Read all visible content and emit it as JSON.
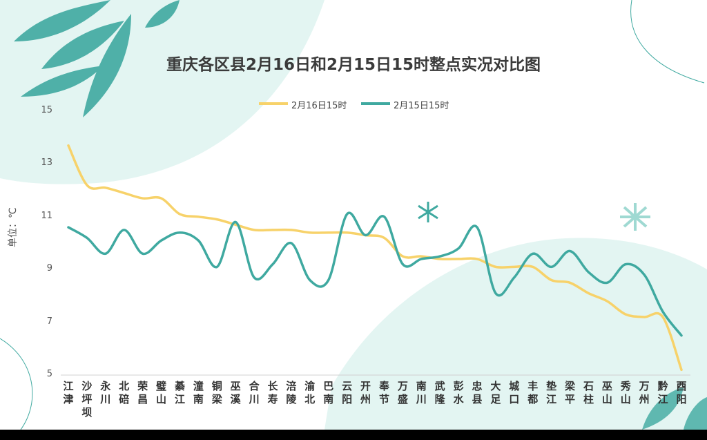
{
  "chart_data": {
    "type": "line",
    "title": "重庆各区县2月16日和2月15日15时整点实况对比图",
    "ylabel": "单位：℃",
    "xlabel": "",
    "ylim": [
      5,
      15
    ],
    "yticks": [
      "5",
      "7",
      "9",
      "11",
      "13",
      "15"
    ],
    "legend_position": "top-center",
    "categories": [
      "江津",
      "沙坪坝",
      "永川",
      "北碚",
      "荣昌",
      "璧山",
      "綦江",
      "潼南",
      "铜梁",
      "巫溪",
      "合川",
      "长寿",
      "涪陵",
      "渝北",
      "巴南",
      "云阳",
      "开州",
      "奉节",
      "万盛",
      "南川",
      "武隆",
      "彭水",
      "忠县",
      "大足",
      "城口",
      "丰都",
      "垫江",
      "梁平",
      "石柱",
      "巫山",
      "秀山",
      "万州",
      "黔江",
      "酉阳"
    ],
    "series": [
      {
        "name": "2月16日15时",
        "color": "#f7d26a",
        "values": [
          13.7,
          12.2,
          12.1,
          11.9,
          11.7,
          11.7,
          11.1,
          11.0,
          10.9,
          10.7,
          10.5,
          10.5,
          10.5,
          10.4,
          10.4,
          10.4,
          10.3,
          10.2,
          9.5,
          9.5,
          9.4,
          9.4,
          9.4,
          9.1,
          9.1,
          9.1,
          8.6,
          8.5,
          8.1,
          7.8,
          7.3,
          7.2,
          7.2,
          5.2
        ]
      },
      {
        "name": "2月15日15时",
        "color": "#3fa9a0",
        "values": [
          10.6,
          10.2,
          9.6,
          10.5,
          9.6,
          10.1,
          10.4,
          10.1,
          9.1,
          10.8,
          8.7,
          9.2,
          10.0,
          8.6,
          8.6,
          11.1,
          10.3,
          11.0,
          9.2,
          9.4,
          9.5,
          9.8,
          10.6,
          8.1,
          8.7,
          9.6,
          9.1,
          9.7,
          8.9,
          8.5,
          9.2,
          8.8,
          7.4,
          6.5
        ]
      }
    ]
  }
}
